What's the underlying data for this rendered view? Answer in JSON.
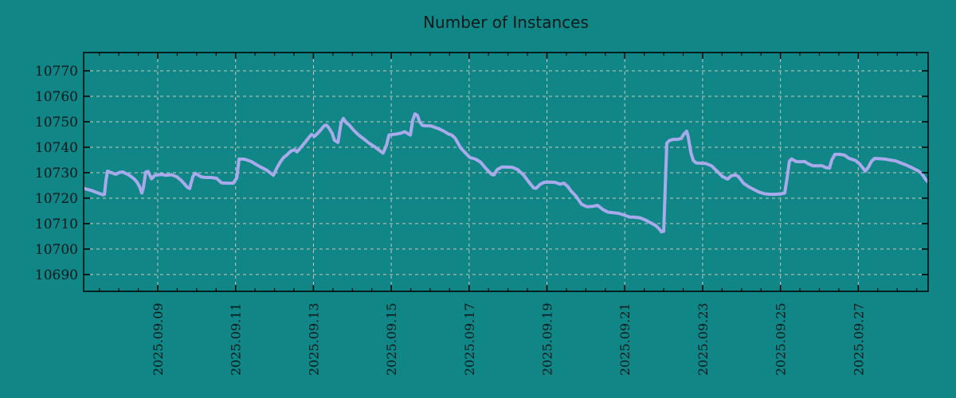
{
  "title": "Number of Instances",
  "colors": {
    "background": "#118686",
    "series_line": "#a8aaec",
    "grid": "#ccc4c4",
    "frame": "#000000",
    "text": "#04191a"
  },
  "chart_data": {
    "type": "line",
    "title": "Number of Instances",
    "series_name": "instances",
    "legend": false,
    "grid": true,
    "x_axis": {
      "unit": "days since 2025-09-07 00:00",
      "range": [
        0.096,
        21.794
      ],
      "minor_tick_interval": 0.5,
      "major_ticks": [
        {
          "t": 2,
          "label": "2025.09.09"
        },
        {
          "t": 4,
          "label": "2025.09.11"
        },
        {
          "t": 6,
          "label": "2025.09.13"
        },
        {
          "t": 8,
          "label": "2025.09.15"
        },
        {
          "t": 10,
          "label": "2025.09.17"
        },
        {
          "t": 12,
          "label": "2025.09.19"
        },
        {
          "t": 14,
          "label": "2025.09.21"
        },
        {
          "t": 16,
          "label": "2025.09.23"
        },
        {
          "t": 18,
          "label": "2025.09.25"
        },
        {
          "t": 20,
          "label": "2025.09.27"
        }
      ]
    },
    "y_axis": {
      "range": [
        10683.4,
        10777.2
      ],
      "ticks": [
        10690,
        10700,
        10710,
        10720,
        10730,
        10740,
        10750,
        10760,
        10770
      ]
    },
    "points": [
      [
        0.1,
        10723.9
      ],
      [
        0.2,
        10723.4
      ],
      [
        0.3,
        10723.0
      ],
      [
        0.4,
        10722.4
      ],
      [
        0.51,
        10721.8
      ],
      [
        0.59,
        10721.3
      ],
      [
        0.63,
        10721.5
      ],
      [
        0.67,
        10727.0
      ],
      [
        0.71,
        10730.6
      ],
      [
        0.81,
        10730.0
      ],
      [
        0.92,
        10729.4
      ],
      [
        1.02,
        10730.1
      ],
      [
        1.1,
        10730.3
      ],
      [
        1.18,
        10729.7
      ],
      [
        1.28,
        10728.9
      ],
      [
        1.39,
        10727.6
      ],
      [
        1.47,
        10726.2
      ],
      [
        1.53,
        10724.6
      ],
      [
        1.59,
        10722.0
      ],
      [
        1.63,
        10724.0
      ],
      [
        1.69,
        10730.2
      ],
      [
        1.75,
        10730.5
      ],
      [
        1.84,
        10727.6
      ],
      [
        1.92,
        10728.9
      ],
      [
        2.0,
        10729.2
      ],
      [
        2.1,
        10729.3
      ],
      [
        2.2,
        10729.0
      ],
      [
        2.35,
        10729.2
      ],
      [
        2.49,
        10728.4
      ],
      [
        2.61,
        10726.9
      ],
      [
        2.76,
        10724.3
      ],
      [
        2.82,
        10723.8
      ],
      [
        2.9,
        10728.4
      ],
      [
        2.96,
        10729.8
      ],
      [
        3.11,
        10728.4
      ],
      [
        3.23,
        10728.1
      ],
      [
        3.37,
        10728.1
      ],
      [
        3.51,
        10727.8
      ],
      [
        3.64,
        10726.0
      ],
      [
        3.78,
        10725.9
      ],
      [
        3.94,
        10725.9
      ],
      [
        4.03,
        10728.0
      ],
      [
        4.09,
        10735.4
      ],
      [
        4.23,
        10735.3
      ],
      [
        4.4,
        10734.4
      ],
      [
        4.54,
        10733.1
      ],
      [
        4.66,
        10732.1
      ],
      [
        4.8,
        10731.0
      ],
      [
        4.97,
        10729.0
      ],
      [
        5.07,
        10732.1
      ],
      [
        5.15,
        10734.2
      ],
      [
        5.23,
        10735.9
      ],
      [
        5.32,
        10737.0
      ],
      [
        5.42,
        10738.5
      ],
      [
        5.52,
        10739.0
      ],
      [
        5.58,
        10738.2
      ],
      [
        5.68,
        10740.0
      ],
      [
        5.79,
        10742.0
      ],
      [
        5.89,
        10744.0
      ],
      [
        5.95,
        10745.0
      ],
      [
        6.03,
        10744.3
      ],
      [
        6.11,
        10745.5
      ],
      [
        6.2,
        10747.0
      ],
      [
        6.28,
        10748.5
      ],
      [
        6.34,
        10748.7
      ],
      [
        6.4,
        10747.5
      ],
      [
        6.48,
        10745.5
      ],
      [
        6.54,
        10742.7
      ],
      [
        6.63,
        10741.9
      ],
      [
        6.71,
        10749.5
      ],
      [
        6.77,
        10751.3
      ],
      [
        6.85,
        10749.5
      ],
      [
        6.91,
        10748.9
      ],
      [
        7.02,
        10746.9
      ],
      [
        7.16,
        10744.8
      ],
      [
        7.3,
        10743.2
      ],
      [
        7.42,
        10741.7
      ],
      [
        7.57,
        10740.2
      ],
      [
        7.71,
        10738.6
      ],
      [
        7.79,
        10737.7
      ],
      [
        7.88,
        10741.0
      ],
      [
        7.94,
        10744.8
      ],
      [
        8.04,
        10745.0
      ],
      [
        8.14,
        10745.2
      ],
      [
        8.24,
        10745.5
      ],
      [
        8.35,
        10746.1
      ],
      [
        8.43,
        10745.3
      ],
      [
        8.49,
        10744.8
      ],
      [
        8.55,
        10750.5
      ],
      [
        8.61,
        10753.1
      ],
      [
        8.67,
        10752.5
      ],
      [
        8.73,
        10750.0
      ],
      [
        8.8,
        10748.6
      ],
      [
        8.9,
        10748.4
      ],
      [
        9.02,
        10748.4
      ],
      [
        9.12,
        10747.8
      ],
      [
        9.23,
        10747.2
      ],
      [
        9.35,
        10746.3
      ],
      [
        9.47,
        10745.2
      ],
      [
        9.55,
        10744.8
      ],
      [
        9.64,
        10743.6
      ],
      [
        9.7,
        10742.0
      ],
      [
        9.78,
        10739.8
      ],
      [
        9.86,
        10738.5
      ],
      [
        9.94,
        10737.2
      ],
      [
        10.02,
        10736.0
      ],
      [
        10.17,
        10735.3
      ],
      [
        10.29,
        10734.2
      ],
      [
        10.43,
        10731.7
      ],
      [
        10.58,
        10729.3
      ],
      [
        10.64,
        10729.1
      ],
      [
        10.72,
        10731.2
      ],
      [
        10.84,
        10732.2
      ],
      [
        10.99,
        10732.2
      ],
      [
        11.11,
        10732.1
      ],
      [
        11.25,
        10731.2
      ],
      [
        11.4,
        10729.1
      ],
      [
        11.52,
        10726.6
      ],
      [
        11.66,
        10724.0
      ],
      [
        11.72,
        10723.9
      ],
      [
        11.83,
        10725.5
      ],
      [
        11.93,
        10726.2
      ],
      [
        12.07,
        10726.3
      ],
      [
        12.21,
        10726.2
      ],
      [
        12.34,
        10725.5
      ],
      [
        12.44,
        10725.9
      ],
      [
        12.54,
        10724.5
      ],
      [
        12.62,
        10722.8
      ],
      [
        12.75,
        10720.7
      ],
      [
        12.89,
        10717.6
      ],
      [
        13.03,
        10716.6
      ],
      [
        13.18,
        10716.8
      ],
      [
        13.3,
        10717.2
      ],
      [
        13.44,
        10715.5
      ],
      [
        13.57,
        10714.5
      ],
      [
        13.71,
        10714.3
      ],
      [
        13.85,
        10714.0
      ],
      [
        13.98,
        10713.4
      ],
      [
        14.12,
        10712.6
      ],
      [
        14.26,
        10712.5
      ],
      [
        14.41,
        10712.2
      ],
      [
        14.53,
        10711.4
      ],
      [
        14.67,
        10710.3
      ],
      [
        14.79,
        10709.3
      ],
      [
        14.88,
        10708.0
      ],
      [
        14.94,
        10706.8
      ],
      [
        15.0,
        10707.0
      ],
      [
        15.04,
        10725.0
      ],
      [
        15.08,
        10741.6
      ],
      [
        15.14,
        10742.6
      ],
      [
        15.24,
        10743.1
      ],
      [
        15.35,
        10743.1
      ],
      [
        15.45,
        10743.4
      ],
      [
        15.51,
        10745.0
      ],
      [
        15.59,
        10746.3
      ],
      [
        15.63,
        10744.0
      ],
      [
        15.7,
        10737.8
      ],
      [
        15.76,
        10734.8
      ],
      [
        15.84,
        10733.8
      ],
      [
        15.96,
        10733.7
      ],
      [
        16.08,
        10733.6
      ],
      [
        16.23,
        10732.7
      ],
      [
        16.37,
        10730.6
      ],
      [
        16.51,
        10728.5
      ],
      [
        16.64,
        10727.5
      ],
      [
        16.74,
        10728.8
      ],
      [
        16.84,
        10729.1
      ],
      [
        16.92,
        10728.5
      ],
      [
        17.05,
        10725.9
      ],
      [
        17.19,
        10724.4
      ],
      [
        17.33,
        10723.3
      ],
      [
        17.46,
        10722.3
      ],
      [
        17.6,
        10721.7
      ],
      [
        17.74,
        10721.5
      ],
      [
        17.86,
        10721.5
      ],
      [
        18.01,
        10721.7
      ],
      [
        18.11,
        10722.0
      ],
      [
        18.17,
        10728.0
      ],
      [
        18.23,
        10734.5
      ],
      [
        18.29,
        10735.4
      ],
      [
        18.4,
        10734.4
      ],
      [
        18.52,
        10734.3
      ],
      [
        18.62,
        10734.4
      ],
      [
        18.72,
        10733.5
      ],
      [
        18.83,
        10732.7
      ],
      [
        18.95,
        10732.7
      ],
      [
        19.07,
        10732.7
      ],
      [
        19.17,
        10732.0
      ],
      [
        19.26,
        10731.8
      ],
      [
        19.32,
        10735.0
      ],
      [
        19.4,
        10737.2
      ],
      [
        19.52,
        10737.2
      ],
      [
        19.65,
        10736.9
      ],
      [
        19.75,
        10735.7
      ],
      [
        19.85,
        10735.2
      ],
      [
        19.93,
        10734.8
      ],
      [
        20.03,
        10733.5
      ],
      [
        20.12,
        10731.8
      ],
      [
        20.18,
        10730.6
      ],
      [
        20.26,
        10732.2
      ],
      [
        20.34,
        10734.5
      ],
      [
        20.42,
        10735.6
      ],
      [
        20.55,
        10735.5
      ],
      [
        20.67,
        10735.4
      ],
      [
        20.81,
        10735.0
      ],
      [
        20.96,
        10734.6
      ],
      [
        21.08,
        10733.9
      ],
      [
        21.2,
        10733.2
      ],
      [
        21.32,
        10732.4
      ],
      [
        21.45,
        10731.4
      ],
      [
        21.55,
        10730.6
      ],
      [
        21.63,
        10729.6
      ],
      [
        21.69,
        10728.3
      ],
      [
        21.75,
        10727.0
      ],
      [
        21.8,
        10726.3
      ]
    ]
  }
}
